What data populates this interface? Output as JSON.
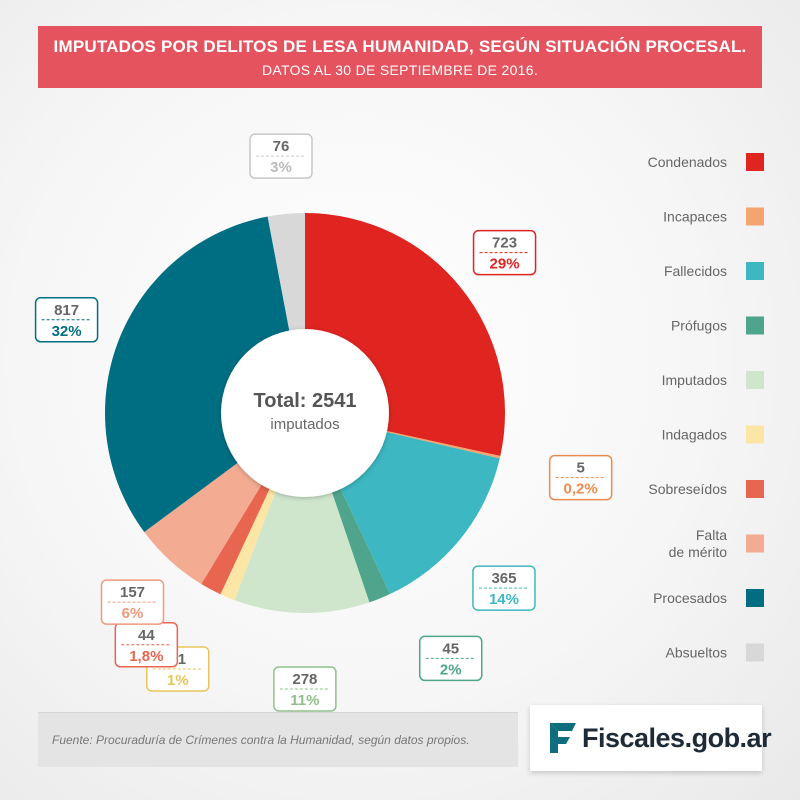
{
  "header": {
    "title": "IMPUTADOS POR DELITOS DE LESA HUMANIDAD, SEGÚN SITUACIÓN PROCESAL.",
    "subtitle": "DATOS AL 30 DE SEPTIEMBRE DE 2016."
  },
  "center": {
    "total": "Total: 2541",
    "unit": "imputados"
  },
  "footer": {
    "source": "Fuente: Procuraduría de Crímenes contra la Humanidad, según datos propios.",
    "brand": "Fiscales.gob.ar",
    "brand_color": "#0e6e7e"
  },
  "chart_data": {
    "type": "pie",
    "total": 2541,
    "legend_position": "right",
    "slices": [
      {
        "label": "Condenados",
        "value": 723,
        "percent": "29%",
        "color": "#e02420"
      },
      {
        "label": "Incapaces",
        "value": 5,
        "percent": "0,2%",
        "color": "#f4a46e"
      },
      {
        "label": "Fallecidos",
        "value": 365,
        "percent": "14%",
        "color": "#3db7c1"
      },
      {
        "label": "Prófugos",
        "value": 45,
        "percent": "2%",
        "color": "#4fa58c"
      },
      {
        "label": "Imputados",
        "value": 278,
        "percent": "11%",
        "color": "#cfe6cd"
      },
      {
        "label": "Indagados",
        "value": 31,
        "percent": "1%",
        "color": "#fbe6a6"
      },
      {
        "label": "Sobreseídos",
        "value": 44,
        "percent": "1,8%",
        "color": "#e86550"
      },
      {
        "label": "Falta\nde mérito",
        "value": 157,
        "percent": "6%",
        "color": "#f3ab92"
      },
      {
        "label": "Procesados",
        "value": 817,
        "percent": "32%",
        "color": "#006e82"
      },
      {
        "label": "Absueltos",
        "value": 76,
        "percent": "3%",
        "color": "#d8d8d8"
      }
    ]
  }
}
